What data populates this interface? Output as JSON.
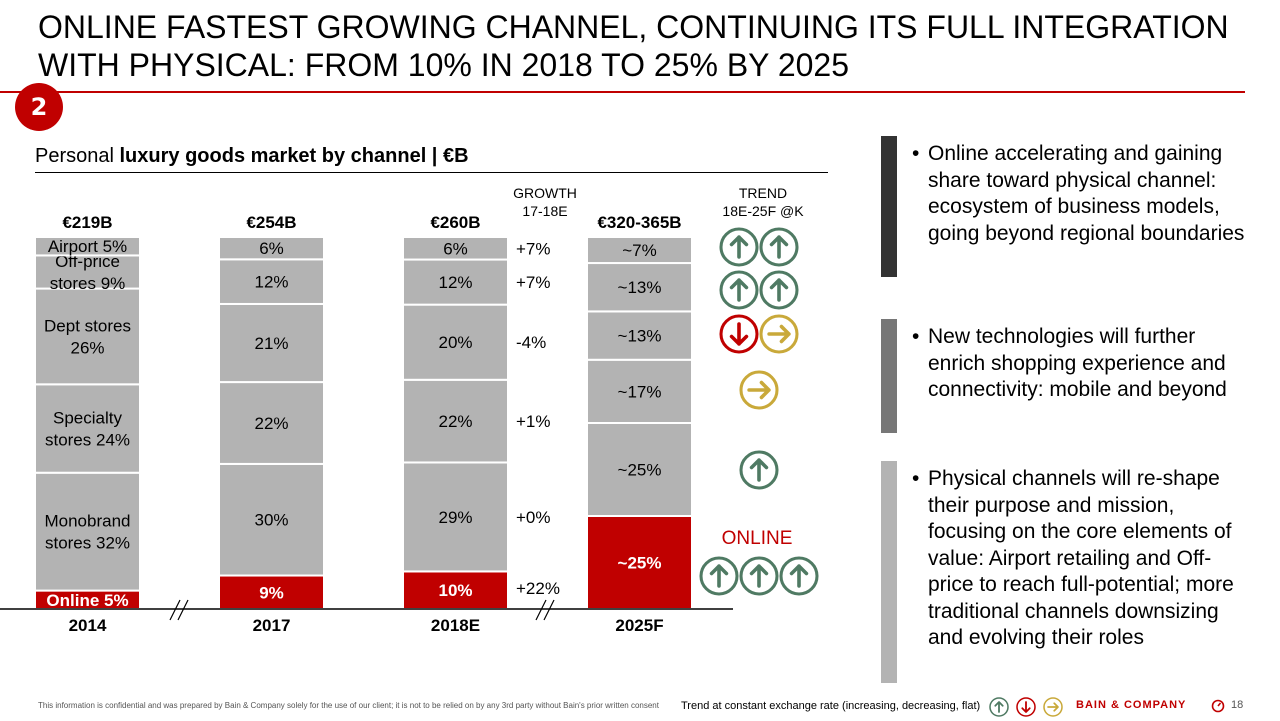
{
  "slide": {
    "title_line1": "ONLINE FASTEST GROWING CHANNEL, CONTINUING ITS FULL INTEGRATION",
    "title_line2": "WITH PHYSICAL: FROM 10% IN 2018 TO 25% BY 2025",
    "section_number": "2",
    "subtitle_plain": "Personal ",
    "subtitle_bold": "luxury goods market by channel | €B"
  },
  "chart_data": {
    "type": "bar",
    "stacked": true,
    "categories": [
      "2014",
      "2017",
      "2018E",
      "2025F"
    ],
    "totals": [
      "€219B",
      "€254B",
      "€260B",
      "€320-365B"
    ],
    "columns": [
      {
        "year": "2014",
        "segments": [
          {
            "label": "Online 5%",
            "value": 5,
            "color": "#c00000"
          },
          {
            "label": "Monobrand stores 32%",
            "lines": [
              "Monobrand",
              "stores 32%"
            ],
            "value": 32,
            "color": "#b3b3b3"
          },
          {
            "label": "Specialty stores 24%",
            "lines": [
              "Specialty",
              "stores 24%"
            ],
            "value": 24,
            "color": "#b3b3b3"
          },
          {
            "label": "Dept stores 26%",
            "lines": [
              "Dept stores",
              "26%"
            ],
            "value": 26,
            "color": "#b3b3b3"
          },
          {
            "label": "Off-price stores 9%",
            "lines": [
              "Off-price",
              "stores 9%"
            ],
            "value": 9,
            "color": "#b3b3b3"
          },
          {
            "label": "Airport 5%",
            "value": 5,
            "color": "#b3b3b3"
          }
        ]
      },
      {
        "year": "2017",
        "segments": [
          {
            "label": "9%",
            "value": 9,
            "color": "#c00000"
          },
          {
            "label": "30%",
            "value": 30,
            "color": "#b3b3b3"
          },
          {
            "label": "22%",
            "value": 22,
            "color": "#b3b3b3"
          },
          {
            "label": "21%",
            "value": 21,
            "color": "#b3b3b3"
          },
          {
            "label": "12%",
            "value": 12,
            "color": "#b3b3b3"
          },
          {
            "label": "6%",
            "value": 6,
            "color": "#b3b3b3"
          }
        ]
      },
      {
        "year": "2018E",
        "segments": [
          {
            "label": "10%",
            "value": 10,
            "color": "#c00000"
          },
          {
            "label": "29%",
            "value": 29,
            "color": "#b3b3b3"
          },
          {
            "label": "22%",
            "value": 22,
            "color": "#b3b3b3"
          },
          {
            "label": "20%",
            "value": 20,
            "color": "#b3b3b3"
          },
          {
            "label": "12%",
            "value": 12,
            "color": "#b3b3b3"
          },
          {
            "label": "6%",
            "value": 6,
            "color": "#b3b3b3"
          }
        ]
      },
      {
        "year": "2025F",
        "segments": [
          {
            "label": "~25%",
            "value": 25,
            "color": "#c00000"
          },
          {
            "label": "~25%",
            "value": 25,
            "color": "#b3b3b3"
          },
          {
            "label": "~17%",
            "value": 17,
            "color": "#b3b3b3"
          },
          {
            "label": "~13%",
            "value": 13,
            "color": "#b3b3b3"
          },
          {
            "label": "~13%",
            "value": 13,
            "color": "#b3b3b3"
          },
          {
            "label": "~7%",
            "value": 7,
            "color": "#b3b3b3"
          }
        ]
      }
    ],
    "growth_header": [
      "GROWTH",
      "17-18E"
    ],
    "growth_values": [
      "+22%",
      "+0%",
      "+1%",
      "-4%",
      "+7%",
      "+7%"
    ],
    "trend_header": [
      "TREND",
      "18E-25F @K"
    ],
    "trend_icons": [
      [
        "up",
        "up",
        "up"
      ],
      [
        "up"
      ],
      [
        "flat"
      ],
      [
        "down",
        "flat"
      ],
      [
        "up",
        "up"
      ],
      [
        "up",
        "up"
      ]
    ],
    "online_label": "ONLINE"
  },
  "bullets": [
    {
      "text": "Online accelerating and gaining share toward physical channel: ecosystem of business models, going beyond regional boundaries",
      "bar_color": "#333333"
    },
    {
      "text": "New technologies will further enrich shopping experience and connectivity: mobile and beyond",
      "bar_color": "#777777"
    },
    {
      "text": "Physical channels will re-shape their purpose and mission, focusing on the core elements of value: Airport retailing and Off-price to reach full-potential; more traditional channels downsizing and evolving their roles",
      "bar_color": "#b3b3b3"
    }
  ],
  "footer": {
    "confidential": "This information is confidential and was prepared by Bain & Company solely for the use of our client; it is not to be relied on by any 3rd party without Bain's prior written consent",
    "legend": "Trend at constant exchange rate (increasing, decreasing, flat)",
    "brand": "BAIN & COMPANY",
    "page": "18"
  },
  "colors": {
    "accent_red": "#c00000",
    "trend_up": "#4f7a63",
    "trend_down": "#c00000",
    "trend_flat": "#c9a93a",
    "segment_gray": "#b3b3b3"
  }
}
